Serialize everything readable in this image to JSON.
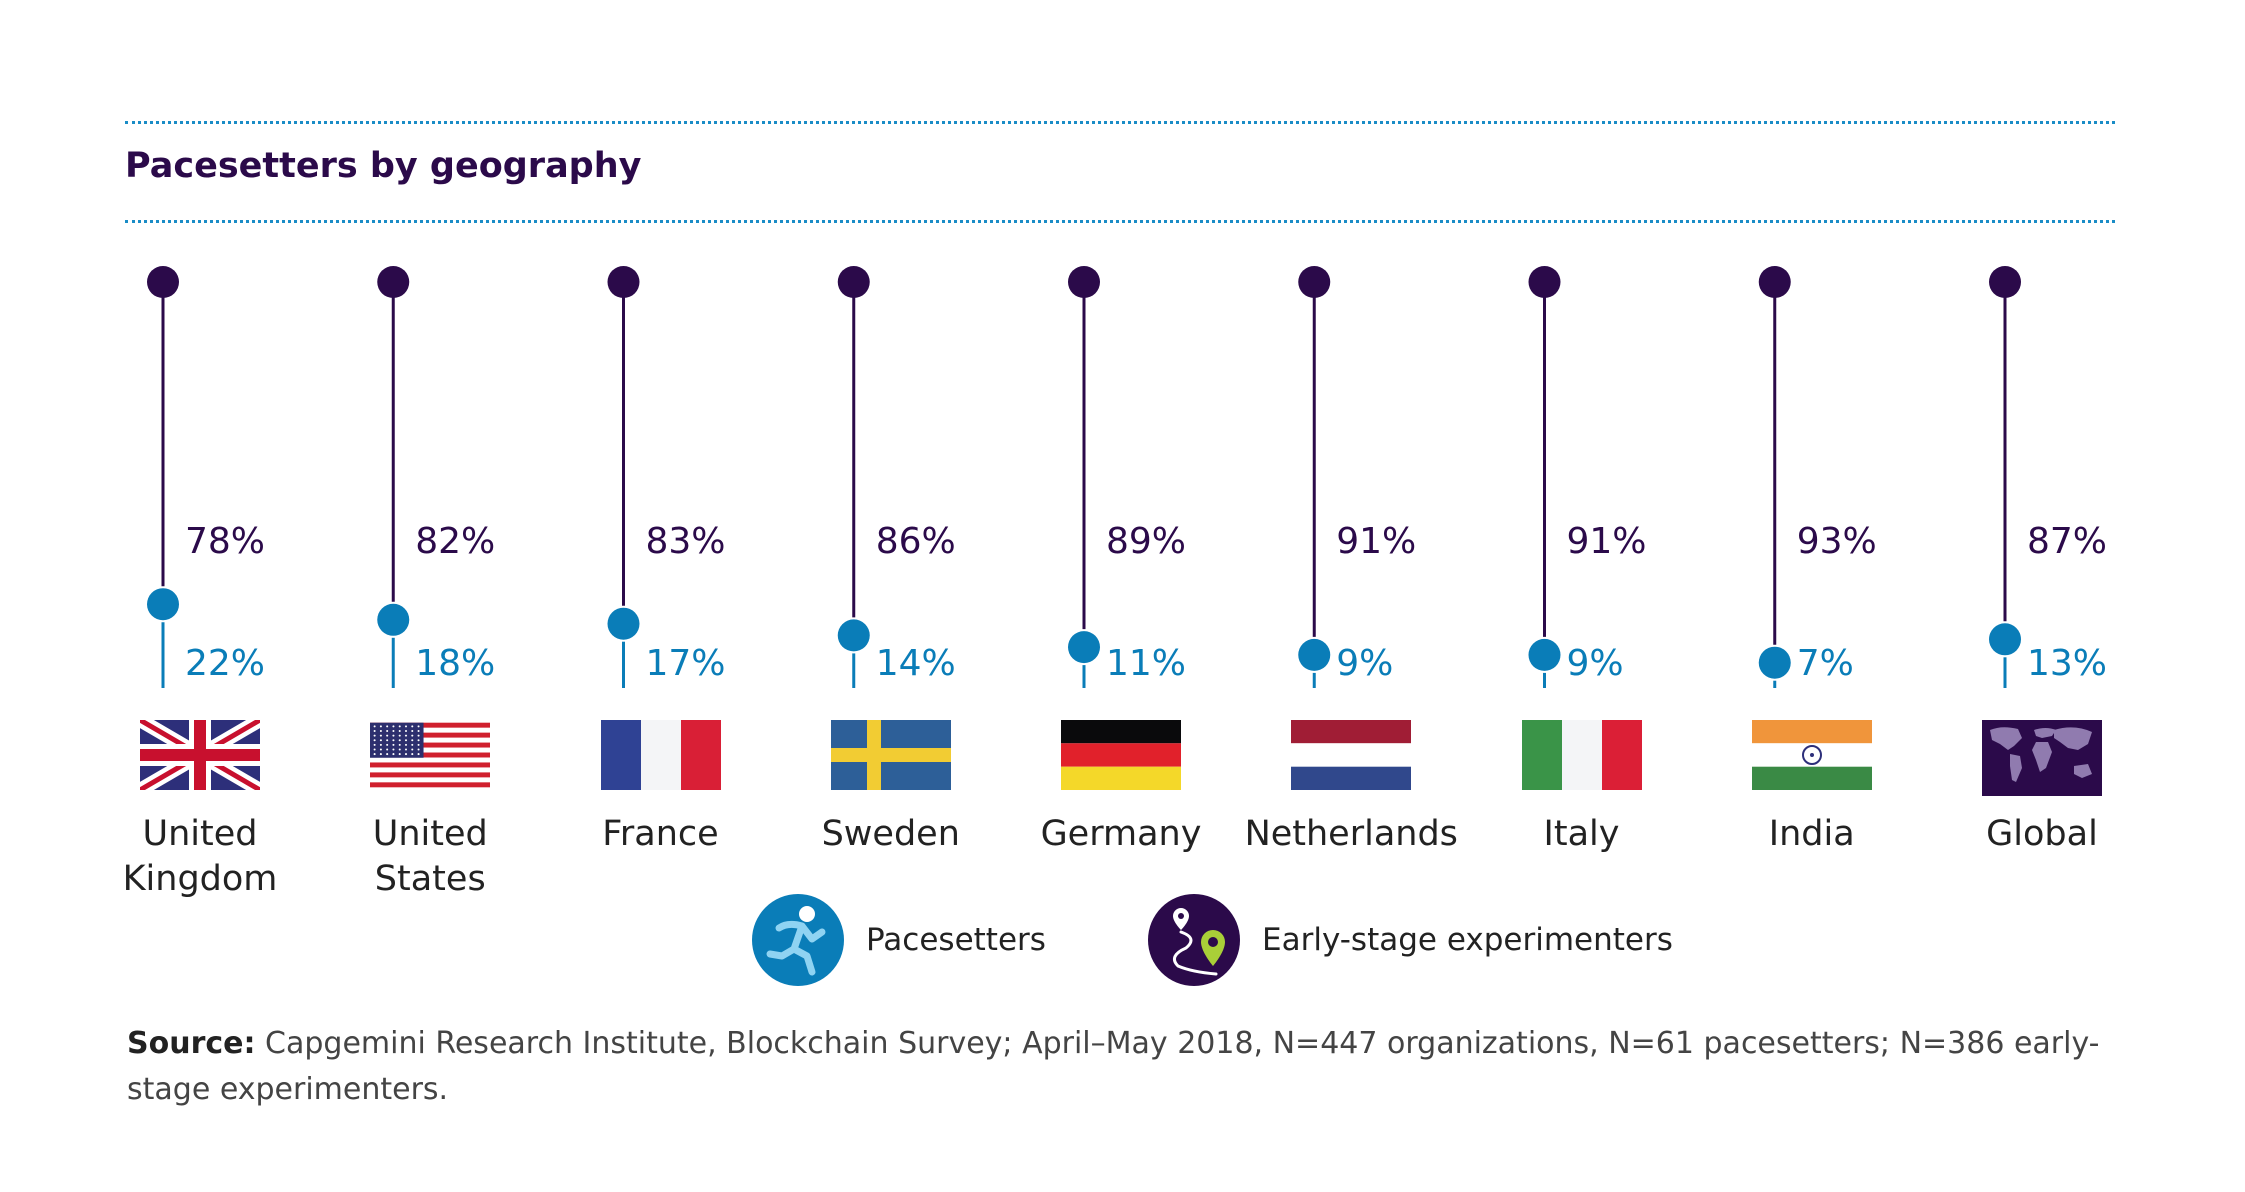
{
  "title": "Pacesetters by geography",
  "colors": {
    "experimenters": "#2b0a4a",
    "pacesetters": "#0a7db8",
    "divider": "#1a8cc6"
  },
  "chart_data": {
    "type": "dumbbell",
    "title": "Pacesetters by geography",
    "xlabel": "",
    "ylabel": "",
    "ylim": [
      0,
      100
    ],
    "grid": false,
    "legend_position": "bottom",
    "categories": [
      "United Kingdom",
      "United States",
      "France",
      "Sweden",
      "Germany",
      "Netherlands",
      "Italy",
      "India",
      "Global"
    ],
    "series": [
      {
        "name": "Early-stage experimenters",
        "values": [
          78,
          82,
          83,
          86,
          89,
          91,
          91,
          93,
          87
        ],
        "labels": [
          "78%",
          "82%",
          "83%",
          "86%",
          "89%",
          "91%",
          "91%",
          "93%",
          "87%"
        ]
      },
      {
        "name": "Pacesetters",
        "values": [
          22,
          18,
          17,
          14,
          11,
          9,
          9,
          7,
          13
        ],
        "labels": [
          "22%",
          "18%",
          "17%",
          "14%",
          "11%",
          "9%",
          "9%",
          "7%",
          "13%"
        ]
      }
    ]
  },
  "countries": [
    {
      "line1": "United",
      "line2": "Kingdom",
      "flag": "uk-flag"
    },
    {
      "line1": "United",
      "line2": "States",
      "flag": "us-flag"
    },
    {
      "line1": "France",
      "line2": "",
      "flag": "france-flag"
    },
    {
      "line1": "Sweden",
      "line2": "",
      "flag": "sweden-flag"
    },
    {
      "line1": "Germany",
      "line2": "",
      "flag": "germany-flag"
    },
    {
      "line1": "Netherlands",
      "line2": "",
      "flag": "netherlands-flag"
    },
    {
      "line1": "Italy",
      "line2": "",
      "flag": "italy-flag"
    },
    {
      "line1": "India",
      "line2": "",
      "flag": "india-flag"
    },
    {
      "line1": "Global",
      "line2": "",
      "flag": "world-map-icon"
    }
  ],
  "legend": {
    "pacesetters": {
      "label": "Pacesetters",
      "icon": "runner-icon"
    },
    "experimenters": {
      "label": "Early-stage experimenters",
      "icon": "map-route-icon"
    }
  },
  "source": {
    "label": "Source:",
    "text": " Capgemini Research Institute, Blockchain Survey; April–May 2018, N=447 organizations, N=61 pacesetters; N=386 early-stage experimenters."
  }
}
